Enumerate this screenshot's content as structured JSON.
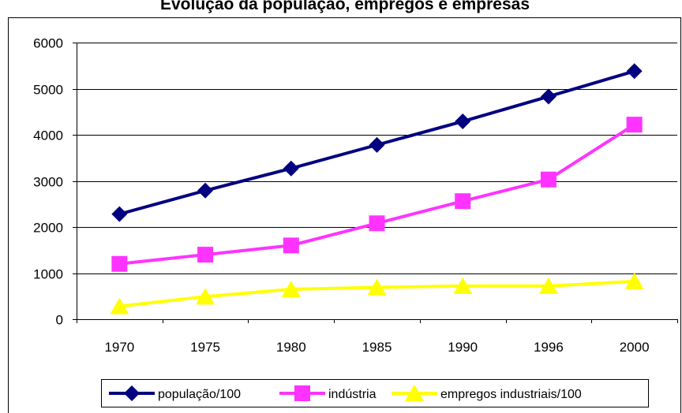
{
  "chart_data": {
    "type": "line",
    "title": "Evolução da população, empregos e empresas",
    "xlabel": "",
    "ylabel": "",
    "categories": [
      "1970",
      "1975",
      "1980",
      "1985",
      "1990",
      "1996",
      "2000"
    ],
    "ylim": [
      0,
      6000
    ],
    "yticks": [
      "0",
      "1000",
      "2000",
      "3000",
      "4000",
      "5000",
      "6000"
    ],
    "grid": true,
    "legend_position": "bottom",
    "series": [
      {
        "name": "população/100",
        "color": "#000080",
        "marker": "diamond",
        "values": [
          2280,
          2790,
          3270,
          3780,
          4290,
          4830,
          5380
        ]
      },
      {
        "name": "indústria",
        "color": "#ff33ff",
        "marker": "square",
        "values": [
          1200,
          1400,
          1600,
          2080,
          2560,
          3030,
          4220
        ]
      },
      {
        "name": "empregos industriais/100",
        "color": "#ffff00",
        "marker": "triangle",
        "values": [
          280,
          490,
          650,
          690,
          720,
          720,
          820
        ]
      }
    ]
  }
}
